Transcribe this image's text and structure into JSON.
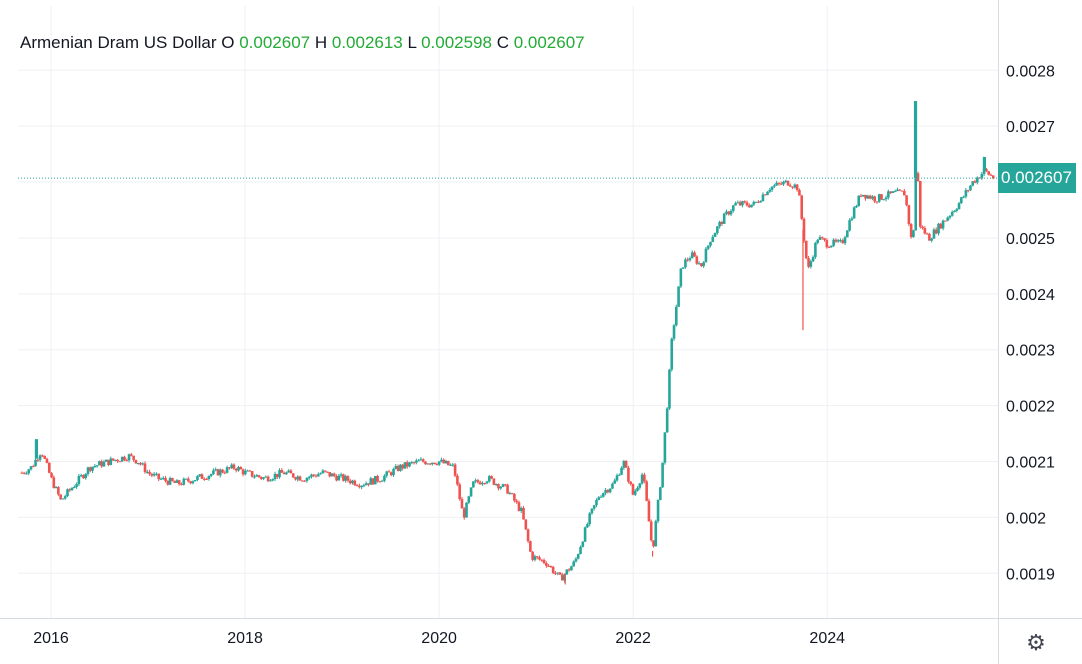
{
  "legend": {
    "title": "Armenian Dram US Dollar",
    "o_label": "O",
    "o_value": "0.002607",
    "h_label": "H",
    "h_value": "0.002613",
    "l_label": "L",
    "l_value": "0.002598",
    "c_label": "C",
    "c_value": "0.002607"
  },
  "last_price_label": "0.002607",
  "settings_icon": "gear-icon",
  "colors": {
    "up": "#26a69a",
    "down": "#ef5350",
    "legend_value": "#22ab36",
    "price_line": "#26a69a"
  },
  "chart_data": {
    "type": "candlestick",
    "title": "Armenian Dram US Dollar",
    "xlabel": "",
    "ylabel": "",
    "y_ticks": [
      "0.0019",
      "0.002",
      "0.0021",
      "0.0022",
      "0.0023",
      "0.0024",
      "0.0025",
      "0.0026",
      "0.0027",
      "0.0028"
    ],
    "x_ticks": [
      "2016",
      "2018",
      "2020",
      "2022",
      "2024"
    ],
    "ylim": [
      0.00182,
      0.002915
    ],
    "xlim": [
      2015.66,
      2025.76
    ],
    "grid": true,
    "last_price": 0.002607,
    "series": [
      {
        "values": [
          [
            2015.7,
            0.00208
          ],
          [
            2015.8,
            0.00209
          ],
          [
            2015.9,
            0.00212
          ],
          [
            2016.0,
            0.00207
          ],
          [
            2016.1,
            0.00203
          ],
          [
            2016.2,
            0.00205
          ],
          [
            2016.3,
            0.00207
          ],
          [
            2016.4,
            0.00209
          ],
          [
            2016.6,
            0.0021
          ],
          [
            2016.8,
            0.00211
          ],
          [
            2016.9,
            0.0021
          ],
          [
            2017.0,
            0.00208
          ],
          [
            2017.1,
            0.00207
          ],
          [
            2017.3,
            0.00206
          ],
          [
            2017.5,
            0.00207
          ],
          [
            2017.7,
            0.00208
          ],
          [
            2017.9,
            0.00209
          ],
          [
            2018.0,
            0.00208
          ],
          [
            2018.2,
            0.00207
          ],
          [
            2018.4,
            0.00208
          ],
          [
            2018.6,
            0.00207
          ],
          [
            2018.8,
            0.00208
          ],
          [
            2019.0,
            0.00207
          ],
          [
            2019.2,
            0.00206
          ],
          [
            2019.4,
            0.00207
          ],
          [
            2019.6,
            0.00209
          ],
          [
            2019.8,
            0.0021
          ],
          [
            2020.0,
            0.0021
          ],
          [
            2020.15,
            0.00209
          ],
          [
            2020.25,
            0.002
          ],
          [
            2020.35,
            0.00206
          ],
          [
            2020.5,
            0.00207
          ],
          [
            2020.7,
            0.00205
          ],
          [
            2020.85,
            0.00201
          ],
          [
            2020.95,
            0.00193
          ],
          [
            2021.1,
            0.00192
          ],
          [
            2021.25,
            0.00189
          ],
          [
            2021.4,
            0.00192
          ],
          [
            2021.55,
            0.002
          ],
          [
            2021.65,
            0.00204
          ],
          [
            2021.8,
            0.00206
          ],
          [
            2021.9,
            0.0021
          ],
          [
            2022.0,
            0.00204
          ],
          [
            2022.1,
            0.00208
          ],
          [
            2022.2,
            0.00194
          ],
          [
            2022.3,
            0.00209
          ],
          [
            2022.35,
            0.0022
          ],
          [
            2022.4,
            0.00232
          ],
          [
            2022.5,
            0.00245
          ],
          [
            2022.6,
            0.00247
          ],
          [
            2022.7,
            0.00245
          ],
          [
            2022.8,
            0.0025
          ],
          [
            2022.95,
            0.00254
          ],
          [
            2023.05,
            0.00256
          ],
          [
            2023.25,
            0.00256
          ],
          [
            2023.4,
            0.00259
          ],
          [
            2023.6,
            0.0026
          ],
          [
            2023.7,
            0.00259
          ],
          [
            2023.8,
            0.00244
          ],
          [
            2023.9,
            0.0025
          ],
          [
            2024.0,
            0.00249
          ],
          [
            2024.15,
            0.00249
          ],
          [
            2024.25,
            0.00254
          ],
          [
            2024.35,
            0.00258
          ],
          [
            2024.5,
            0.00257
          ],
          [
            2024.7,
            0.00258
          ],
          [
            2024.8,
            0.00258
          ],
          [
            2024.88,
            0.00248
          ],
          [
            2024.92,
            0.00265
          ],
          [
            2024.96,
            0.00252
          ],
          [
            2025.05,
            0.0025
          ],
          [
            2025.2,
            0.00253
          ],
          [
            2025.35,
            0.00256
          ],
          [
            2025.5,
            0.0026
          ],
          [
            2025.62,
            0.00262
          ],
          [
            2025.72,
            0.002607
          ]
        ],
        "spikes_high": [
          [
            2015.85,
            0.00214
          ],
          [
            2024.91,
            0.002745
          ],
          [
            2025.62,
            0.002645
          ]
        ],
        "spikes_low": [
          [
            2023.75,
            0.002335
          ],
          [
            2022.2,
            0.00193
          ],
          [
            2021.3,
            0.00188
          ]
        ]
      }
    ]
  }
}
